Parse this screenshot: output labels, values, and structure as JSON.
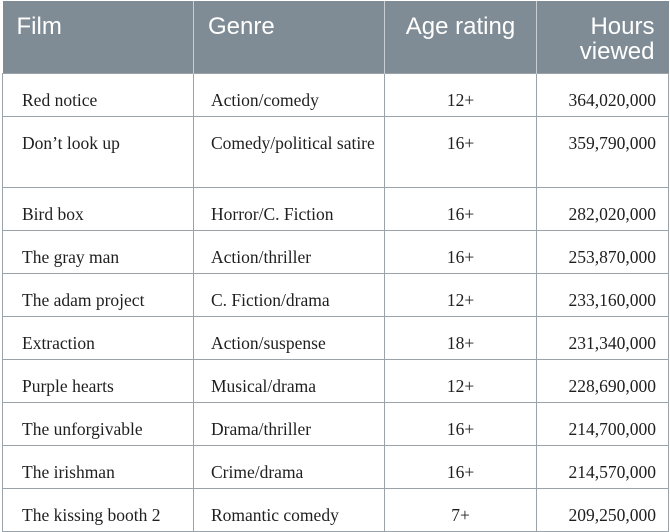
{
  "table": {
    "headers": {
      "film": "Film",
      "genre": "Genre",
      "age_rating": "Age rating",
      "hours_viewed_line1": "Hours",
      "hours_viewed_line2": "viewed"
    },
    "rows": [
      {
        "film": "Red notice",
        "genre": "Action/comedy",
        "age_rating": "12+",
        "hours_viewed": "364,020,000"
      },
      {
        "film": "Don’t look up",
        "genre": "Comedy/political satire",
        "age_rating": "16+",
        "hours_viewed": "359,790,000"
      },
      {
        "film": "Bird box",
        "genre": "Horror/C. Fiction",
        "age_rating": "16+",
        "hours_viewed": "282,020,000"
      },
      {
        "film": "The gray man",
        "genre": "Action/thriller",
        "age_rating": "16+",
        "hours_viewed": "253,870,000"
      },
      {
        "film": "The adam project",
        "genre": "C. Fiction/drama",
        "age_rating": "12+",
        "hours_viewed": "233,160,000"
      },
      {
        "film": "Extraction",
        "genre": "Action/suspense",
        "age_rating": "18+",
        "hours_viewed": "231,340,000"
      },
      {
        "film": "Purple hearts",
        "genre": "Musical/drama",
        "age_rating": "12+",
        "hours_viewed": "228,690,000"
      },
      {
        "film": "The unforgivable",
        "genre": "Drama/thriller",
        "age_rating": "16+",
        "hours_viewed": "214,700,000"
      },
      {
        "film": "The irishman",
        "genre": "Crime/drama",
        "age_rating": "16+",
        "hours_viewed": "214,570,000"
      },
      {
        "film": "The kissing booth 2",
        "genre": "Romantic comedy",
        "age_rating": "7+",
        "hours_viewed": "209,250,000"
      }
    ]
  },
  "colors": {
    "header_background": "#7f8c95",
    "header_text": "#ffffff",
    "grid_line": "#9aa3a9"
  }
}
